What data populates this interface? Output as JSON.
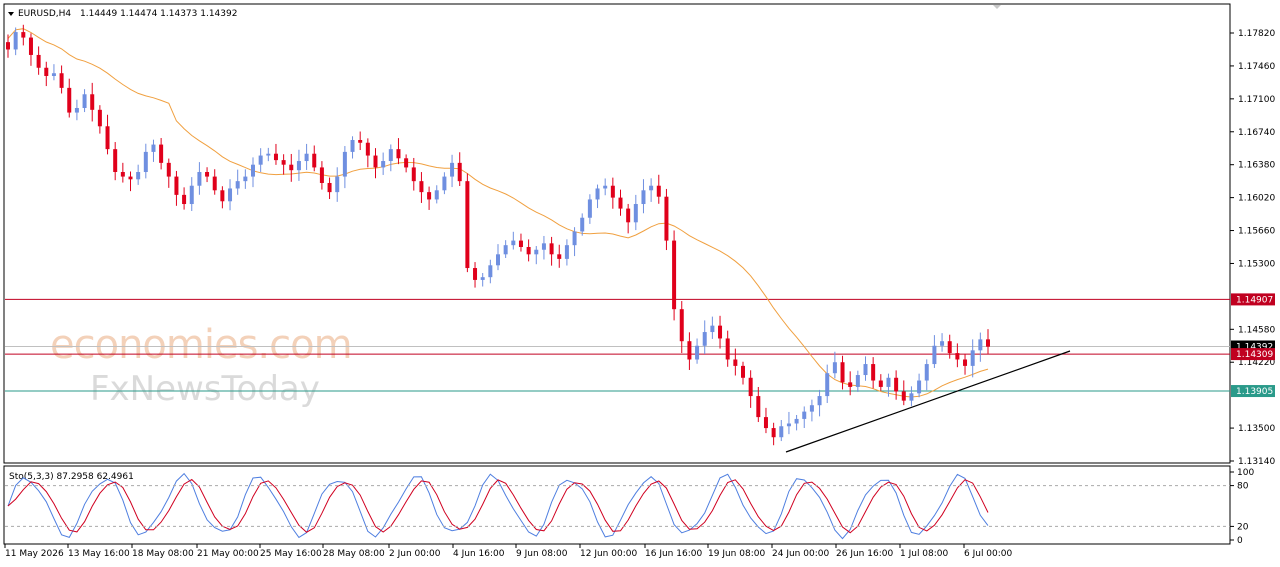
{
  "header": {
    "symbol": "EURUSD,H4",
    "ohlc": "1.14449 1.14474 1.14373 1.14392"
  },
  "watermark": {
    "line1": "economies.com",
    "line2": "FxNewsToday"
  },
  "colors": {
    "bull": "#6f8fe0",
    "bear": "#e0001b",
    "ma": "#f0a040",
    "resistance": "#c00020",
    "support": "#2a9a8a",
    "trend": "#000000",
    "stoch_main": "#4f7fe0",
    "stoch_signal": "#d00020"
  },
  "chart_data": [
    {
      "type": "candlestick",
      "title": "",
      "ylim": [
        1.312,
        1.18
      ],
      "y_ticks": [
        "1.17820",
        "1.17460",
        "1.17100",
        "1.16740",
        "1.16380",
        "1.16020",
        "1.15660",
        "1.15300",
        "1.14580",
        "1.14220",
        "1.13500",
        "1.13140"
      ],
      "x_ticks": [
        "11 May 2026",
        "13 May 16:00",
        "18 May 08:00",
        "21 May 00:00",
        "25 May 16:00",
        "28 May 08:00",
        "2 Jun 00:00",
        "4 Jun 16:00",
        "9 Jun 08:00",
        "12 Jun 00:00",
        "16 Jun 16:00",
        "19 Jun 08:00",
        "24 Jun 00:00",
        "26 Jun 16:00",
        "1 Jul 08:00",
        "6 Jul 00:00"
      ],
      "price_tags": {
        "resistance": "1.14907",
        "current": "1.14392",
        "pivot": "1.14309",
        "support": "1.13905"
      },
      "levels": {
        "resistance": 1.14907,
        "current": 1.14392,
        "pivot": 1.14309,
        "support": 1.13905
      },
      "trendline": [
        [
          0.7871,
          1.1323
        ],
        [
          1.0,
          1.1437
        ]
      ],
      "closes": [
        1.1764,
        1.1783,
        1.1777,
        1.1758,
        1.1744,
        1.1735,
        1.1738,
        1.1722,
        1.1695,
        1.17,
        1.1715,
        1.1698,
        1.168,
        1.1655,
        1.163,
        1.1625,
        1.1622,
        1.163,
        1.1652,
        1.166,
        1.164,
        1.1625,
        1.1605,
        1.1595,
        1.1615,
        1.163,
        1.1625,
        1.161,
        1.1598,
        1.1612,
        1.162,
        1.1625,
        1.1638,
        1.1648,
        1.165,
        1.1643,
        1.1638,
        1.1632,
        1.1642,
        1.165,
        1.1635,
        1.1618,
        1.1608,
        1.1625,
        1.1652,
        1.1665,
        1.1662,
        1.1648,
        1.1635,
        1.1642,
        1.1655,
        1.1645,
        1.1635,
        1.162,
        1.1608,
        1.16,
        1.161,
        1.1625,
        1.164,
        1.162,
        1.1525,
        1.1512,
        1.1515,
        1.1528,
        1.154,
        1.155,
        1.1555,
        1.1548,
        1.154,
        1.1545,
        1.1552,
        1.154,
        1.1535,
        1.155,
        1.1565,
        1.158,
        1.16,
        1.1612,
        1.1615,
        1.1602,
        1.159,
        1.1575,
        1.1595,
        1.161,
        1.1615,
        1.1603,
        1.1555,
        1.148,
        1.1445,
        1.1425,
        1.144,
        1.1455,
        1.1462,
        1.1448,
        1.1425,
        1.1418,
        1.1405,
        1.1385,
        1.1362,
        1.135,
        1.134,
        1.1352,
        1.1355,
        1.136,
        1.1368,
        1.1375,
        1.1385,
        1.141,
        1.1422,
        1.14,
        1.1395,
        1.1408,
        1.142,
        1.1402,
        1.1395,
        1.1405,
        1.139,
        1.138,
        1.1388,
        1.1402,
        1.142,
        1.144,
        1.1445,
        1.1432,
        1.1425,
        1.1418,
        1.1435,
        1.1447,
        1.1439
      ]
    },
    {
      "type": "line",
      "title": "",
      "label": "Sto(5,3,3) 87.2958 62.4961",
      "ylim": [
        0,
        100
      ],
      "y_ticks": [
        "100",
        "80",
        "20",
        "0"
      ],
      "levels": [
        80,
        20
      ]
    }
  ]
}
